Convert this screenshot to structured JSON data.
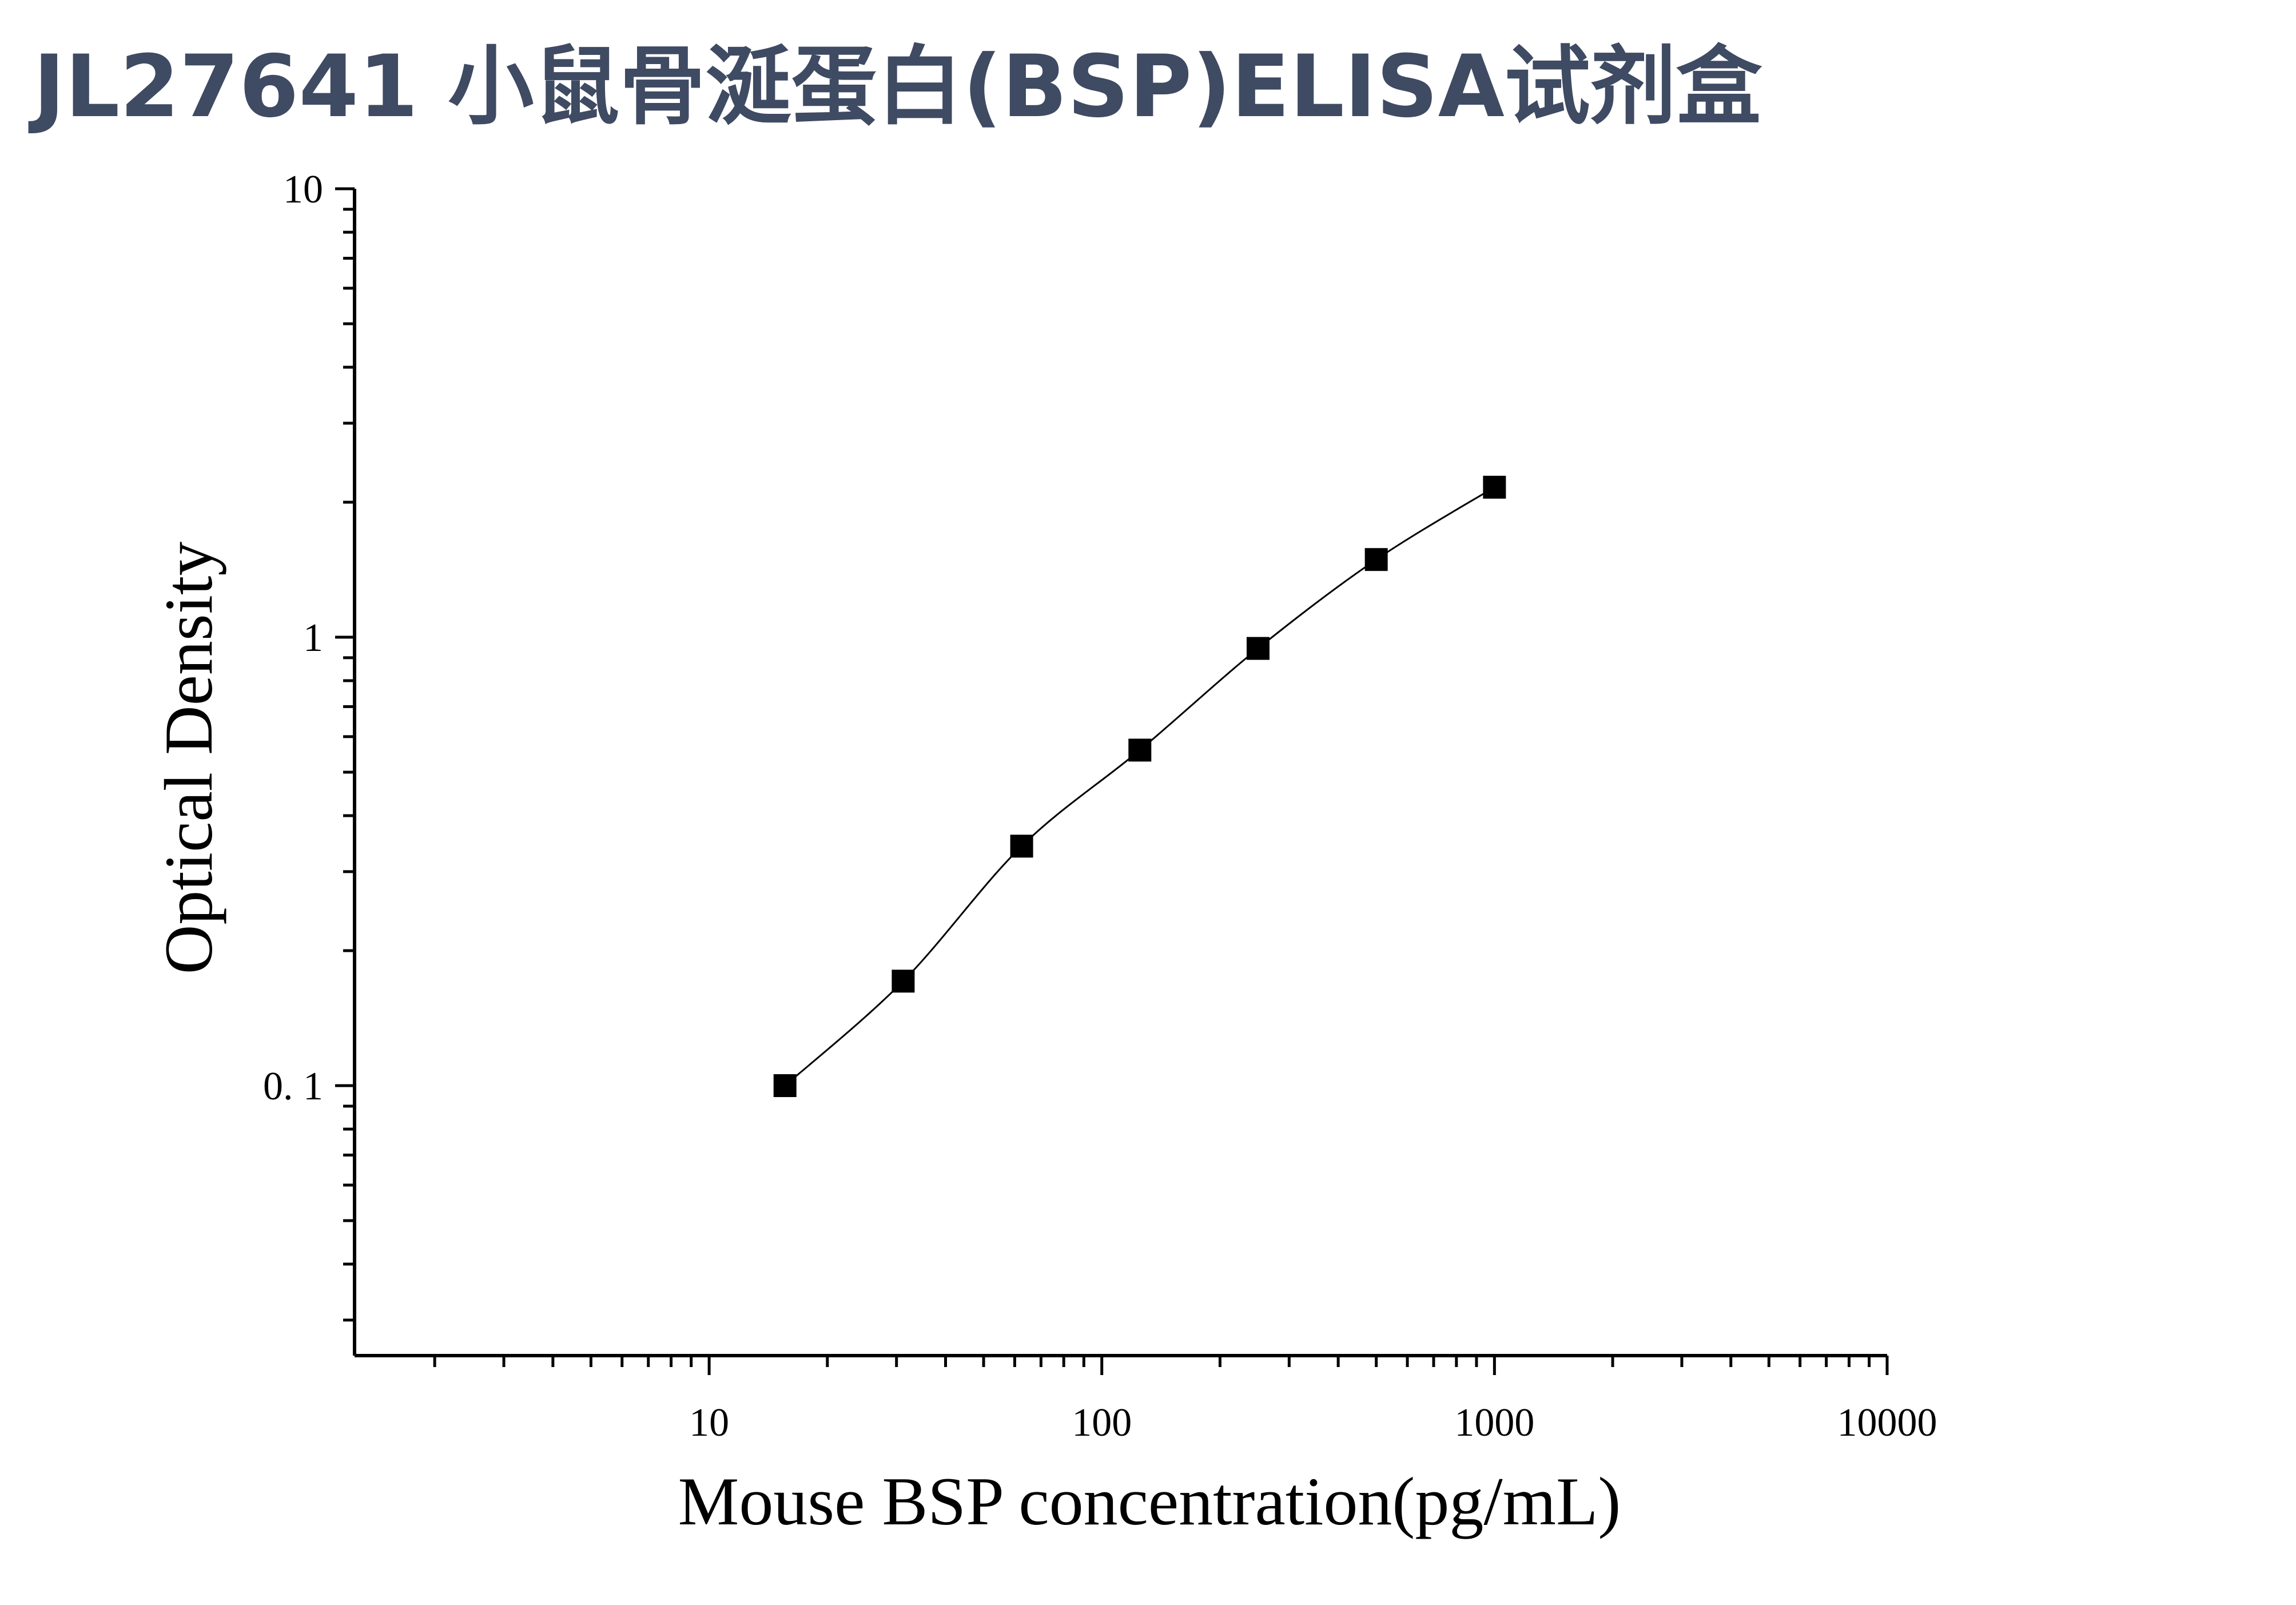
{
  "title": "JL27641 小鼠骨涎蛋白(BSP)ELISA试剂盒",
  "chart_data": {
    "type": "scatter",
    "title": "",
    "xlabel": "Mouse BSP concentration(pg/mL)",
    "ylabel": "Optical Density",
    "xscale": "log",
    "yscale": "log",
    "xlim": [
      1.25,
      10000
    ],
    "ylim": [
      0.025,
      10
    ],
    "x_ticks": [
      10,
      100,
      1000,
      10000
    ],
    "x_tick_labels": [
      "10",
      "100",
      "1000",
      "10000"
    ],
    "y_ticks": [
      0.1,
      1,
      10
    ],
    "y_tick_labels": [
      "0. 1",
      "1",
      "10"
    ],
    "grid": false,
    "legend": "none",
    "colors": {
      "marker": "#000000",
      "line": "#000000",
      "title": "#3f4a63"
    },
    "series": [
      {
        "x": [
          15.6,
          31.2,
          62.5,
          125,
          250,
          500,
          1000
        ],
        "y": [
          0.1,
          0.171,
          0.342,
          0.56,
          0.944,
          1.49,
          2.16
        ],
        "marker": "square",
        "fit_line": true
      }
    ]
  }
}
